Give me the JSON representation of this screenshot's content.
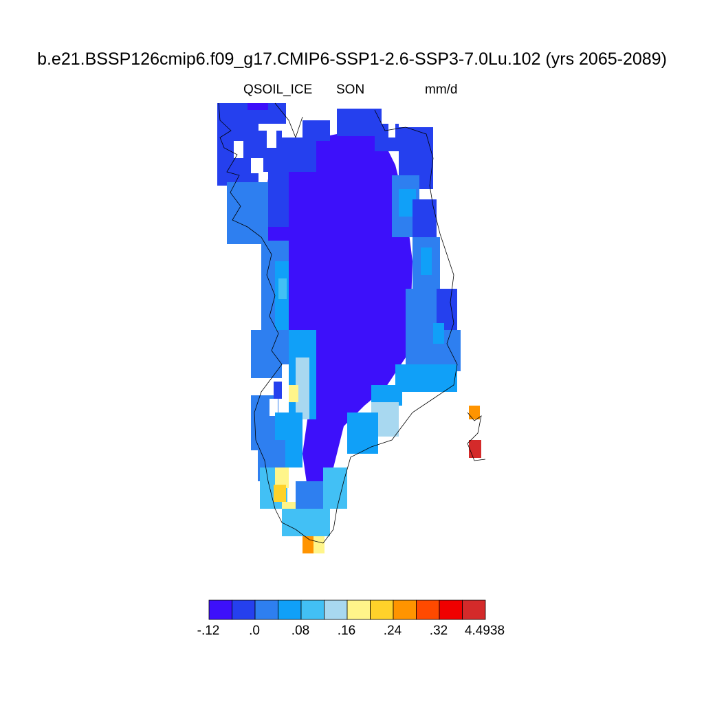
{
  "title": "b.e21.BSSP126cmip6.f09_g17.CMIP6-SSP1-2.6-SSP3-7.0Lu.102 (yrs 2065-2089)",
  "subtitle": {
    "variable": "QSOIL_ICE",
    "season": "SON",
    "units": "mm/d"
  },
  "colorbar": {
    "colors": [
      "#3d10fa",
      "#2540ee",
      "#2e7ff0",
      "#10a0f8",
      "#42c0f5",
      "#a8d8f0",
      "#fff58a",
      "#ffd22a",
      "#ff9400",
      "#ff4a00",
      "#f00000",
      "#d42a2a"
    ],
    "labels": [
      "-.12",
      ".0",
      ".08",
      ".16",
      ".24",
      ".32",
      "4.4938"
    ]
  },
  "map": {
    "region": "Greenland",
    "background_value_color": "#3d10fa",
    "notes": "Ice-sheet interior at lowest level; higher values along margins, orange/red cells over Iceland"
  }
}
